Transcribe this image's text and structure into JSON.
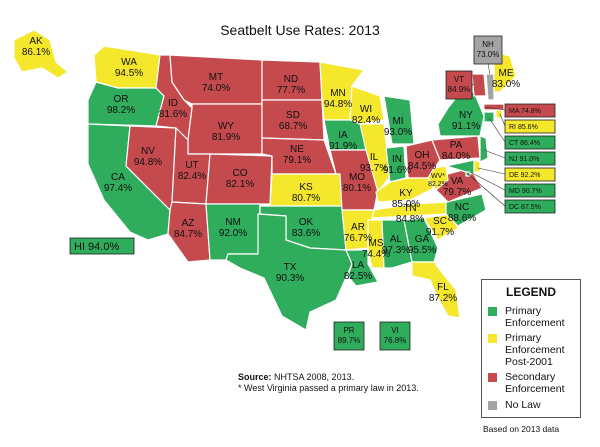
{
  "title": "Seatbelt Use Rates: 2013",
  "colors": {
    "primary": "#2fac5c",
    "primary_post2001": "#f5e72c",
    "secondary": "#c44a4e",
    "no_law": "#a3a3a3"
  },
  "states": [
    {
      "abbr": "AK",
      "rate": "86.1%",
      "category": "primary_post2001"
    },
    {
      "abbr": "WA",
      "rate": "94.5%",
      "category": "primary_post2001"
    },
    {
      "abbr": "OR",
      "rate": "98.2%",
      "category": "primary"
    },
    {
      "abbr": "CA",
      "rate": "97.4%",
      "category": "primary"
    },
    {
      "abbr": "NV",
      "rate": "94.8%",
      "category": "secondary"
    },
    {
      "abbr": "ID",
      "rate": "81.6%",
      "category": "secondary"
    },
    {
      "abbr": "MT",
      "rate": "74.0%",
      "category": "secondary"
    },
    {
      "abbr": "WY",
      "rate": "81.9%",
      "category": "secondary"
    },
    {
      "abbr": "UT",
      "rate": "82.4%",
      "category": "secondary"
    },
    {
      "abbr": "AZ",
      "rate": "84.7%",
      "category": "secondary"
    },
    {
      "abbr": "CO",
      "rate": "82.1%",
      "category": "secondary"
    },
    {
      "abbr": "NM",
      "rate": "92.0%",
      "category": "primary"
    },
    {
      "abbr": "ND",
      "rate": "77.7%",
      "category": "secondary"
    },
    {
      "abbr": "SD",
      "rate": "68.7%",
      "category": "secondary"
    },
    {
      "abbr": "NE",
      "rate": "79.1%",
      "category": "secondary"
    },
    {
      "abbr": "KS",
      "rate": "80.7%",
      "category": "primary_post2001"
    },
    {
      "abbr": "OK",
      "rate": "83.6%",
      "category": "primary"
    },
    {
      "abbr": "TX",
      "rate": "90.3%",
      "category": "primary"
    },
    {
      "abbr": "MN",
      "rate": "94.8%",
      "category": "primary_post2001"
    },
    {
      "abbr": "IA",
      "rate": "91.9%",
      "category": "primary"
    },
    {
      "abbr": "MO",
      "rate": "80.1%",
      "category": "secondary"
    },
    {
      "abbr": "AR",
      "rate": "76.7%",
      "category": "primary_post2001"
    },
    {
      "abbr": "LA",
      "rate": "82.5%",
      "category": "primary"
    },
    {
      "abbr": "WI",
      "rate": "82.4%",
      "category": "primary_post2001"
    },
    {
      "abbr": "IL",
      "rate": "93.7%",
      "category": "primary_post2001"
    },
    {
      "abbr": "MI",
      "rate": "93.0%",
      "category": "primary"
    },
    {
      "abbr": "IN",
      "rate": "91.6%",
      "category": "primary"
    },
    {
      "abbr": "OH",
      "rate": "84.5%",
      "category": "secondary"
    },
    {
      "abbr": "KY",
      "rate": "85.0%",
      "category": "primary_post2001"
    },
    {
      "abbr": "TN",
      "rate": "84.8%",
      "category": "primary_post2001"
    },
    {
      "abbr": "MS",
      "rate": "74.4%",
      "category": "primary_post2001"
    },
    {
      "abbr": "AL",
      "rate": "97.3%",
      "category": "primary"
    },
    {
      "abbr": "GA",
      "rate": "95.5%",
      "category": "primary"
    },
    {
      "abbr": "FL",
      "rate": "87.2%",
      "category": "primary_post2001"
    },
    {
      "abbr": "SC",
      "rate": "91.7%",
      "category": "primary_post2001"
    },
    {
      "abbr": "NC",
      "rate": "88.6%",
      "category": "primary"
    },
    {
      "abbr": "VA",
      "rate": "79.7%",
      "category": "secondary"
    },
    {
      "abbr": "WV*",
      "rate": "82.2%",
      "category": "primary_post2001"
    },
    {
      "abbr": "PA",
      "rate": "84.0%",
      "category": "secondary"
    },
    {
      "abbr": "NY",
      "rate": "91.1%",
      "category": "primary"
    },
    {
      "abbr": "VT",
      "rate": "84.9%",
      "category": "secondary"
    },
    {
      "abbr": "NH",
      "rate": "73.0%",
      "category": "no_law"
    },
    {
      "abbr": "ME",
      "rate": "83.0%",
      "category": "primary_post2001"
    },
    {
      "abbr": "MA",
      "rate": "74.8%",
      "category": "secondary"
    },
    {
      "abbr": "RI",
      "rate": "85.6%",
      "category": "primary_post2001"
    },
    {
      "abbr": "CT",
      "rate": "86.4%",
      "category": "primary"
    },
    {
      "abbr": "NJ",
      "rate": "91.0%",
      "category": "primary"
    },
    {
      "abbr": "DE",
      "rate": "92.2%",
      "category": "primary_post2001"
    },
    {
      "abbr": "MD",
      "rate": "90.7%",
      "category": "primary"
    },
    {
      "abbr": "DC",
      "rate": "87.5%",
      "category": "primary"
    },
    {
      "abbr": "HI",
      "rate": "94.0%",
      "category": "primary"
    },
    {
      "abbr": "PR",
      "rate": "89.7%",
      "category": "primary"
    },
    {
      "abbr": "VI",
      "rate": "76.8%",
      "category": "primary"
    }
  ],
  "legend": {
    "title": "LEGEND",
    "items": [
      {
        "label_1": "Primary",
        "label_2": "Enforcement",
        "label_3": ""
      },
      {
        "label_1": "Primary",
        "label_2": "Enforcement",
        "label_3": "Post-2001"
      },
      {
        "label_1": "Secondary",
        "label_2": "Enforcement",
        "label_3": ""
      },
      {
        "label_1": "No Law",
        "label_2": "",
        "label_3": ""
      }
    ]
  },
  "source": {
    "label": "Source:",
    "text": "NHTSA 2008, 2013.",
    "note": "* West Virginia passed a primary law in 2013."
  },
  "footer_note": "Based on 2013 data"
}
